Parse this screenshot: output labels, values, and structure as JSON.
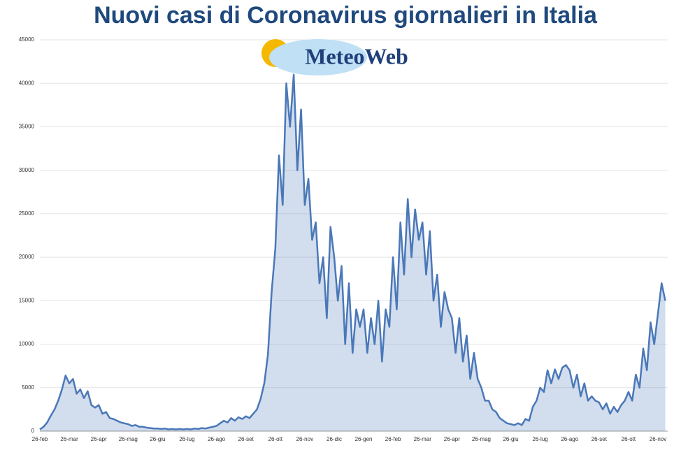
{
  "chart_data": {
    "type": "line",
    "title": "Nuovi casi di Coronavirus giornalieri in Italia",
    "logo": "MeteoWeb",
    "color": "#4a78b8",
    "ylim": [
      0,
      45000
    ],
    "yticks": [
      0,
      5000,
      10000,
      15000,
      20000,
      25000,
      30000,
      35000,
      40000,
      45000
    ],
    "grid": true,
    "categories": [
      "26-feb",
      null,
      null,
      null,
      null,
      null,
      null,
      null,
      "26-mar",
      null,
      null,
      null,
      null,
      null,
      null,
      null,
      "26-apr",
      null,
      null,
      null,
      null,
      null,
      null,
      null,
      "26-mag",
      null,
      null,
      null,
      null,
      null,
      null,
      null,
      "26-giu",
      null,
      null,
      null,
      null,
      null,
      null,
      null,
      "26-lug",
      null,
      null,
      null,
      null,
      null,
      null,
      null,
      "26-ago",
      null,
      null,
      null,
      null,
      null,
      null,
      null,
      "26-set",
      null,
      null,
      null,
      null,
      null,
      null,
      null,
      "26-ott",
      null,
      null,
      null,
      null,
      null,
      null,
      null,
      "26-nov",
      null,
      null,
      null,
      null,
      null,
      null,
      null,
      "26-dic",
      null,
      null,
      null,
      null,
      null,
      null,
      null,
      "26-gen",
      null,
      null,
      null,
      null,
      null,
      null,
      null,
      "26-feb",
      null,
      null,
      null,
      null,
      null,
      null,
      null,
      "26-mar",
      null,
      null,
      null,
      null,
      null,
      null,
      null,
      "26-apr",
      null,
      null,
      null,
      null,
      null,
      null,
      null,
      "26-mag",
      null,
      null,
      null,
      null,
      null,
      null,
      null,
      "26-giu",
      null,
      null,
      null,
      null,
      null,
      null,
      null,
      "26-lug",
      null,
      null,
      null,
      null,
      null,
      null,
      null,
      "26-ago",
      null,
      null,
      null,
      null,
      null,
      null,
      null,
      "26-set",
      null,
      null,
      null,
      null,
      null,
      null,
      null,
      "26-ott",
      null,
      null,
      null,
      null,
      null,
      null,
      null,
      "26-nov",
      null,
      null
    ],
    "values": [
      200,
      500,
      1000,
      1800,
      2500,
      3500,
      4800,
      6400,
      5500,
      6000,
      4300,
      4800,
      3800,
      4600,
      3000,
      2700,
      3000,
      2000,
      2200,
      1500,
      1400,
      1200,
      1000,
      900,
      800,
      600,
      700,
      500,
      500,
      400,
      350,
      300,
      300,
      250,
      300,
      200,
      250,
      200,
      250,
      200,
      250,
      200,
      300,
      250,
      350,
      300,
      400,
      500,
      600,
      900,
      1200,
      1000,
      1500,
      1200,
      1600,
      1400,
      1700,
      1500,
      2000,
      2500,
      3700,
      5500,
      8800,
      16000,
      21000,
      31700,
      26000,
      40000,
      35000,
      41000,
      30000,
      37000,
      26000,
      29000,
      22000,
      24000,
      17000,
      20000,
      13000,
      23500,
      20000,
      15000,
      19000,
      10000,
      17000,
      9000,
      14000,
      12000,
      14000,
      9000,
      13000,
      10000,
      15000,
      8000,
      14000,
      12000,
      20000,
      14000,
      24000,
      18000,
      26700,
      20000,
      25500,
      22000,
      24000,
      18000,
      23000,
      15000,
      18000,
      12000,
      16000,
      14000,
      13000,
      9000,
      13000,
      8000,
      11000,
      6000,
      9000,
      6000,
      5000,
      3500,
      3500,
      2500,
      2200,
      1500,
      1200,
      900,
      800,
      700,
      900,
      700,
      1400,
      1200,
      2800,
      3500,
      5000,
      4500,
      7000,
      5500,
      7100,
      6000,
      7300,
      7600,
      7000,
      5000,
      6500,
      4000,
      5500,
      3500,
      4000,
      3500,
      3300,
      2500,
      3200,
      2000,
      2800,
      2200,
      3000,
      3500,
      4500,
      3500,
      6500,
      5000,
      9500,
      7000,
      12500,
      10000,
      13500,
      17000,
      15000
    ]
  }
}
